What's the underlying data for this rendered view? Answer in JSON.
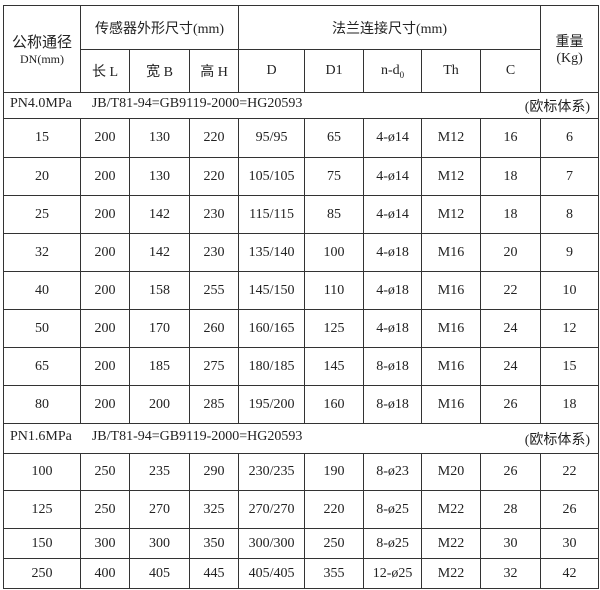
{
  "header": {
    "dn_label_cn": "公称通径",
    "dn_label": "DN(mm)",
    "sensor_group": "传感器外形尺寸(mm)",
    "flange_group": "法兰连接尺寸(mm)",
    "weight_cn": "重量",
    "weight_unit": "(Kg)",
    "columns": [
      "长 L",
      "宽 B",
      "高 H",
      "D",
      "D1",
      "n-d",
      "Th",
      "C"
    ],
    "nd_subscript": "0"
  },
  "sections": [
    {
      "pressure": "PN4.0MPa",
      "standard": "JB/T81-94=GB9119-2000=HG20593",
      "system": "(欧标体系)",
      "rows": [
        [
          "15",
          "200",
          "130",
          "220",
          "95/95",
          "65",
          "4-ø14",
          "M12",
          "16",
          "6"
        ],
        [
          "20",
          "200",
          "130",
          "220",
          "105/105",
          "75",
          "4-ø14",
          "M12",
          "18",
          "7"
        ],
        [
          "25",
          "200",
          "142",
          "230",
          "115/115",
          "85",
          "4-ø14",
          "M12",
          "18",
          "8"
        ],
        [
          "32",
          "200",
          "142",
          "230",
          "135/140",
          "100",
          "4-ø18",
          "M16",
          "20",
          "9"
        ],
        [
          "40",
          "200",
          "158",
          "255",
          "145/150",
          "110",
          "4-ø18",
          "M16",
          "22",
          "10"
        ],
        [
          "50",
          "200",
          "170",
          "260",
          "160/165",
          "125",
          "4-ø18",
          "M16",
          "24",
          "12"
        ],
        [
          "65",
          "200",
          "185",
          "275",
          "180/185",
          "145",
          "8-ø18",
          "M16",
          "24",
          "15"
        ],
        [
          "80",
          "200",
          "200",
          "285",
          "195/200",
          "160",
          "8-ø18",
          "M16",
          "26",
          "18"
        ]
      ]
    },
    {
      "pressure": "PN1.6MPa",
      "standard": "JB/T81-94=GB9119-2000=HG20593",
      "system": "(欧标体系)",
      "rows": [
        [
          "100",
          "250",
          "235",
          "290",
          "230/235",
          "190",
          "8-ø23",
          "M20",
          "26",
          "22"
        ],
        [
          "125",
          "250",
          "270",
          "325",
          "270/270",
          "220",
          "8-ø25",
          "M22",
          "28",
          "26"
        ],
        [
          "150",
          "300",
          "300",
          "350",
          "300/300",
          "250",
          "8-ø25",
          "M22",
          "30",
          "30"
        ],
        [
          "250",
          "400",
          "405",
          "445",
          "405/405",
          "355",
          "12-ø25",
          "M22",
          "32",
          "42"
        ]
      ]
    }
  ]
}
